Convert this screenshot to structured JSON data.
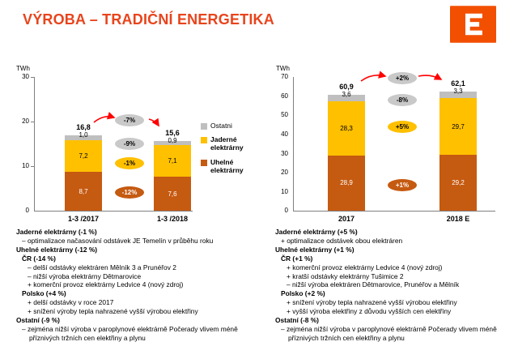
{
  "slide": {
    "title": "VÝROBA – TRADIČNÍ ENERGETIKA"
  },
  "palette": {
    "title_orange": "#E8441C",
    "logo_orange": "#F24F00",
    "coal_dark_orange": "#C55A11",
    "nuclear_yellow": "#FFC000",
    "other_gray": "#BFBFBF",
    "bubble_gray": "#C9C9C9",
    "arrow_red": "#FF0000"
  },
  "legend": {
    "items": [
      {
        "label": "Ostatni",
        "color": "#BFBFBF"
      },
      {
        "label": "Jaderné elektrárny",
        "color": "#FFC000"
      },
      {
        "label": "Uhelné elektrárny",
        "color": "#C55A11"
      }
    ]
  },
  "chart_data": [
    {
      "type": "bar",
      "stacked": true,
      "title": "",
      "unit": "TWh",
      "ylim": [
        0,
        30
      ],
      "yticks": [
        30,
        20,
        10,
        0
      ],
      "grid": false,
      "categories": [
        "1-3 /2017",
        "1-3 /2018"
      ],
      "totals": {
        "values": [
          16.8,
          15.6
        ],
        "labels": [
          "16,8",
          "15,6"
        ]
      },
      "series": [
        {
          "name": "Ostatni",
          "color": "#BFBFBF",
          "values": [
            1.0,
            0.9
          ],
          "labels": [
            "1,0",
            "0,9"
          ]
        },
        {
          "name": "Jaderné elektrárny",
          "color": "#FFC000",
          "values": [
            7.2,
            7.1
          ],
          "labels": [
            "7,2",
            "7,1"
          ]
        },
        {
          "name": "Uhelné elektrárny",
          "color": "#C55A11",
          "values": [
            8.7,
            7.6
          ],
          "labels": [
            "8,7",
            "7,6"
          ]
        }
      ],
      "deltas": {
        "total": "-7%",
        "other": "-9%",
        "nuclear": "-1%",
        "coal": "-12%"
      }
    },
    {
      "type": "bar",
      "stacked": true,
      "title": "",
      "unit": "TWh",
      "ylim": [
        0,
        70
      ],
      "yticks": [
        70,
        60,
        50,
        40,
        30,
        20,
        10,
        0
      ],
      "grid": false,
      "categories": [
        "2017",
        "2018 E"
      ],
      "totals": {
        "values": [
          60.9,
          62.1
        ],
        "labels": [
          "60,9",
          "62,1"
        ]
      },
      "series": [
        {
          "name": "Ostatni",
          "color": "#BFBFBF",
          "values": [
            3.6,
            3.3
          ],
          "labels": [
            "3,6",
            "3,3"
          ]
        },
        {
          "name": "Jaderné elektrárny",
          "color": "#FFC000",
          "values": [
            28.3,
            29.7
          ],
          "labels": [
            "28,3",
            "29,7"
          ]
        },
        {
          "name": "Uhelné elektrárny",
          "color": "#C55A11",
          "values": [
            28.9,
            29.2
          ],
          "labels": [
            "28,9",
            "29,2"
          ]
        }
      ],
      "deltas": {
        "total": "+2%",
        "other": "-8%",
        "nuclear": "+5%",
        "coal": "+1%"
      }
    }
  ],
  "notes_left": {
    "lines": [
      {
        "text": "Jaderné elektrárny (-1 %)"
      },
      {
        "text": "– optimalizace načasování odstávek JE Temelín v průběhu roku"
      },
      {
        "text": "Uhelné elektrárny (-12 %)"
      },
      {
        "text": "ČR (-14 %)"
      },
      {
        "text": "– delší odstávky elektráren Mělník 3 a Prunéřov 2"
      },
      {
        "text": "– nižší výroba elektrárny Dětmarovice"
      },
      {
        "text": "+ komerční provoz elektrárny Ledvice 4 (nový zdroj)"
      },
      {
        "text": "Polsko (+4 %)"
      },
      {
        "text": "+ delší odstávky v roce 2017"
      },
      {
        "text": "+ snížení výroby tepla nahrazené vyšší výrobou elektřiny"
      },
      {
        "text": "Ostatní (-9 %)"
      },
      {
        "text": "– zejména nižší výroba v paroplynové elektrárně Počerady vlivem méně příznivých tržních cen elektřiny a plynu"
      }
    ]
  },
  "notes_right": {
    "lines": [
      {
        "text": "Jaderné elektrárny (+5 %)"
      },
      {
        "text": "+ optimalizace odstávek obou elektráren"
      },
      {
        "text": "Uhelné elektrárny (+1 %)"
      },
      {
        "text": "ČR (+1 %)"
      },
      {
        "text": "+ komerční provoz elektrárny Ledvice 4 (nový zdroj)"
      },
      {
        "text": "+ kratší odstávky elektrárny Tušimice 2"
      },
      {
        "text": "– nižší výroba elektráren Dětmarovice, Prunéřov a Mělník"
      },
      {
        "text": "Polsko (+2 %)"
      },
      {
        "text": "+ snížení výroby tepla nahrazené vyšší výrobou elektřiny"
      },
      {
        "text": "+ vyšší výroba elektřiny z důvodu vyšších cen elektřiny"
      },
      {
        "text": "Ostatní (-8 %)"
      },
      {
        "text": "– zejména nižší výroba v paroplynové elektrárně Počerady vlivem méně příznivých tržních cen elektřiny a plynu"
      }
    ]
  }
}
